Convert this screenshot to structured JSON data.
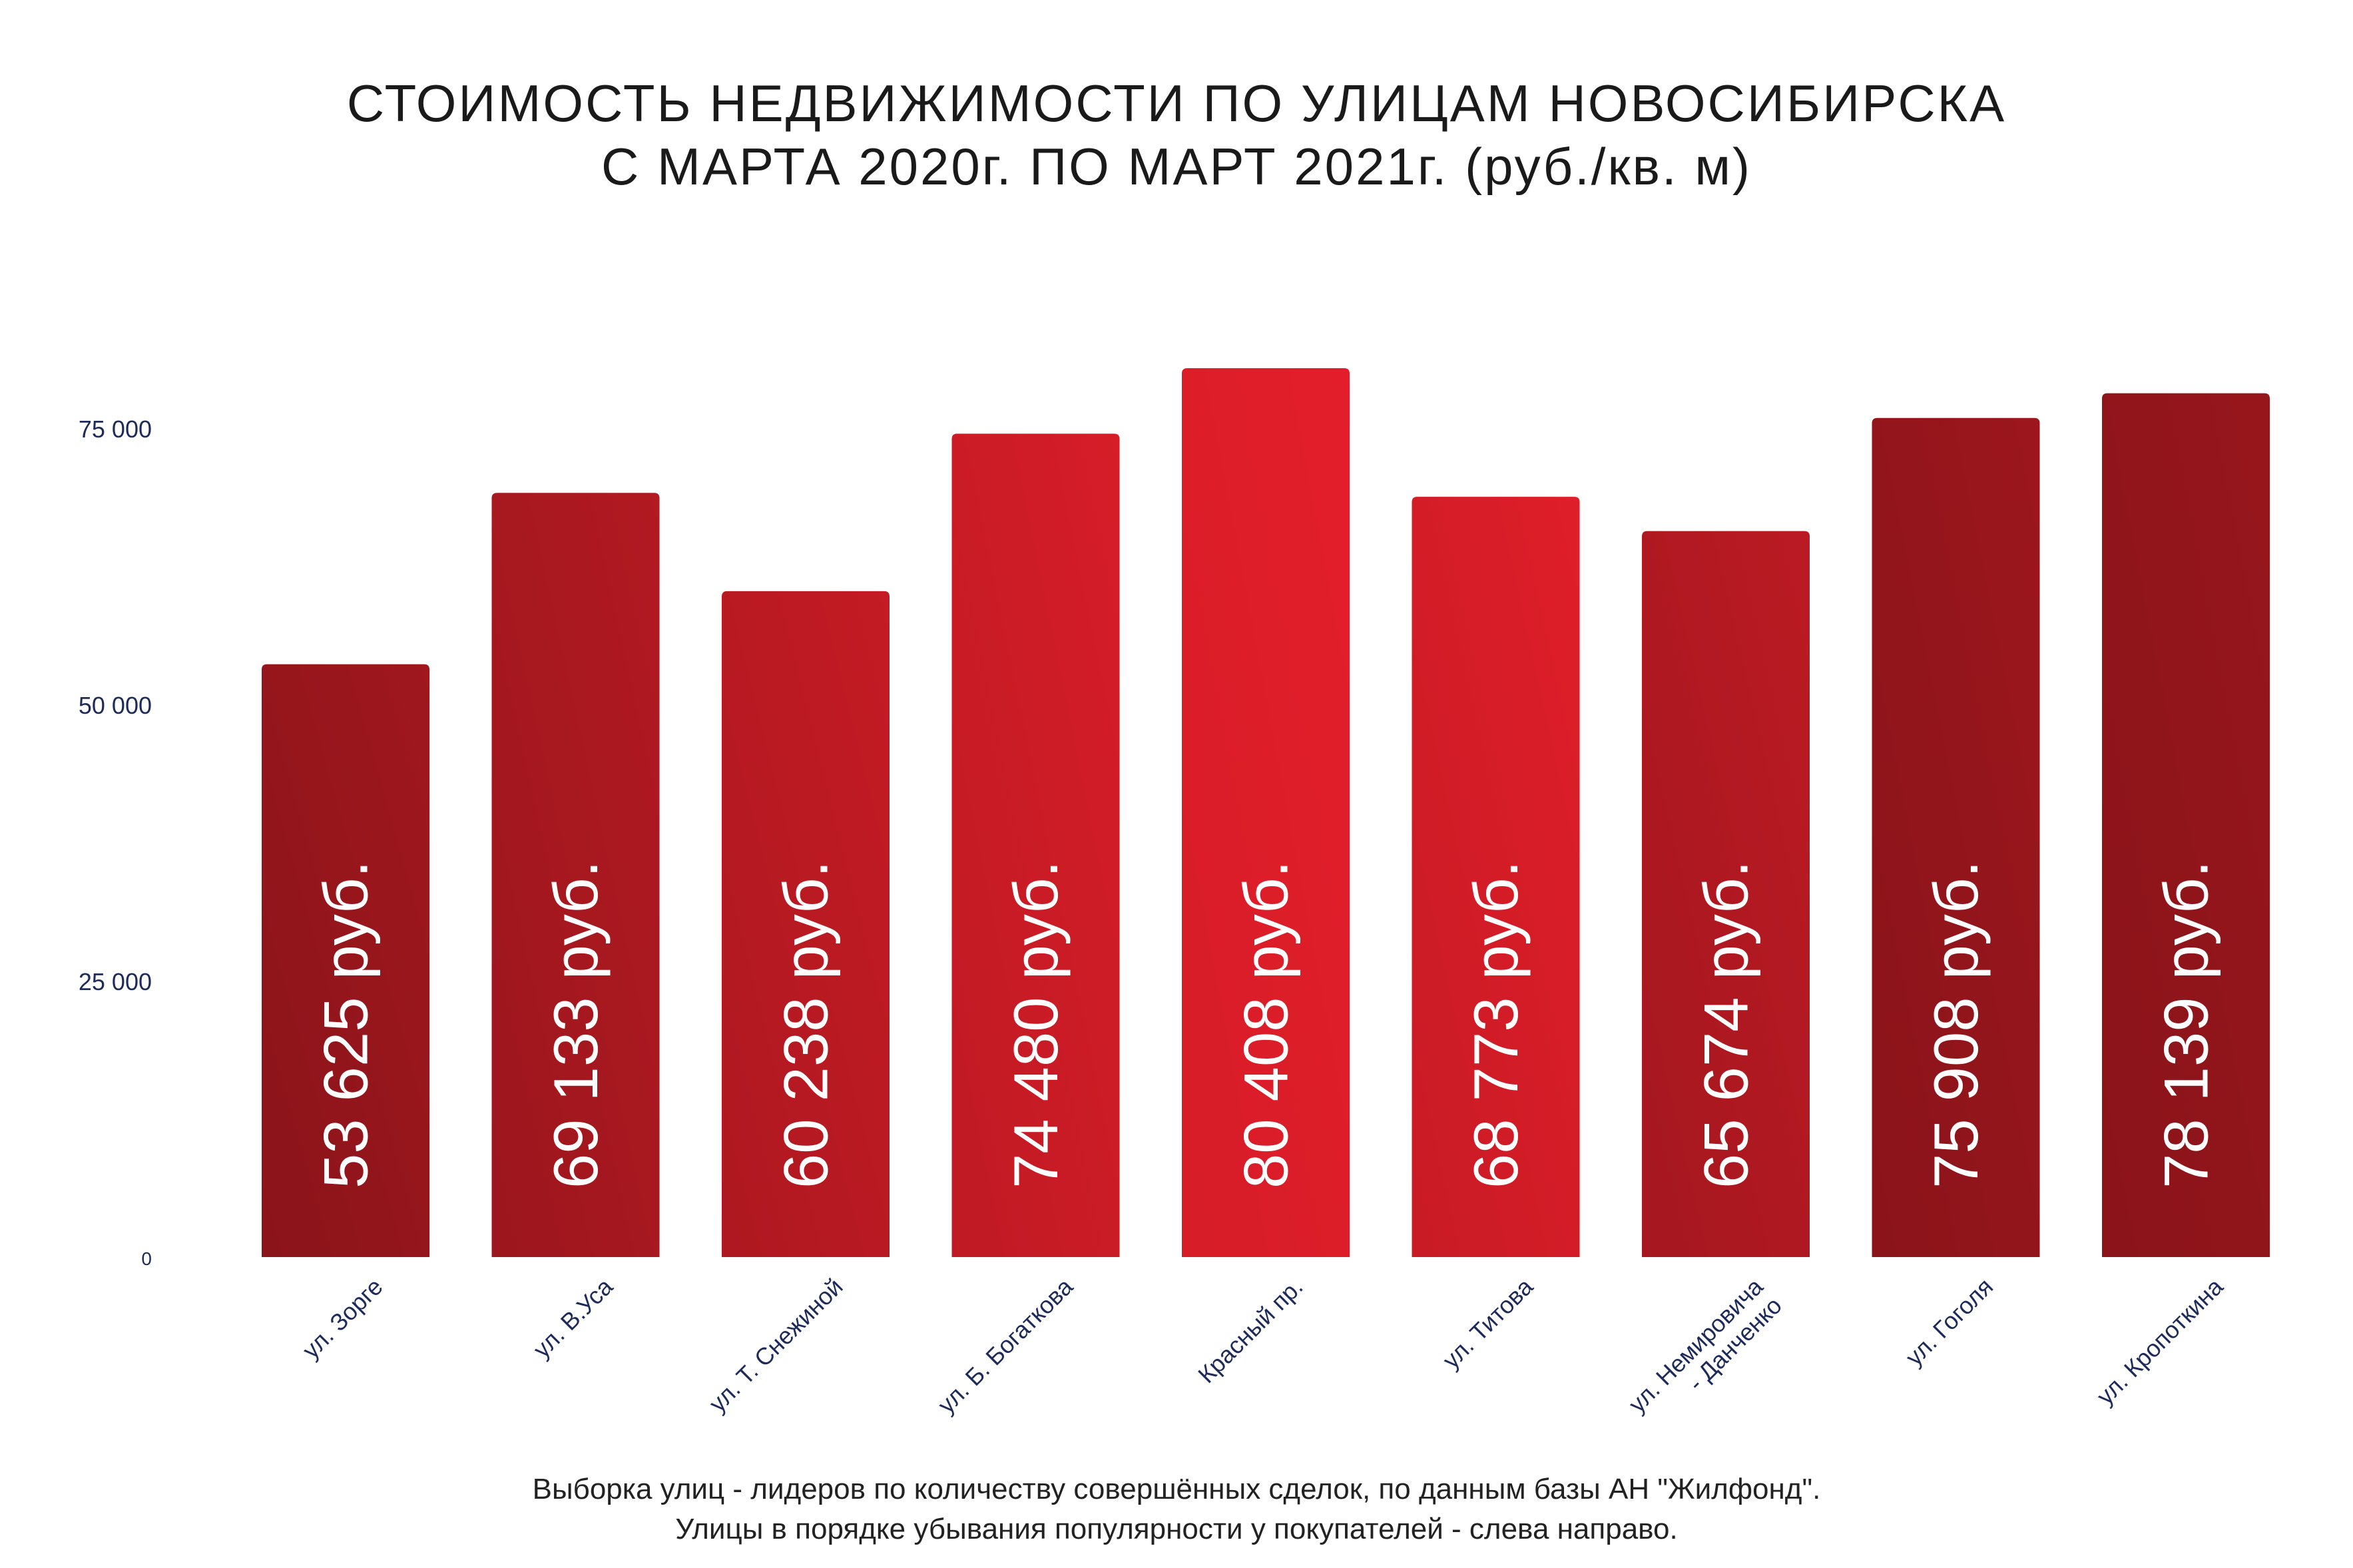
{
  "title": {
    "line1": "СТОИМОСТЬ НЕДВИЖИМОСТИ ПО УЛИЦАМ НОВОСИБИРСКА",
    "line2": "С МАРТА 2020г. ПО МАРТ 2021г.  (руб./кв. м)"
  },
  "footnote": {
    "line1": "Выборка улиц - лидеров по количеству совершённых сделок, по данным базы АН \"Жилфонд\".",
    "line2": "Улицы в порядке убывания популярности у покупателей - слева направо."
  },
  "colors": {
    "axis_text": "#1d2b5a",
    "bar_dark": "#8a141a",
    "bar_mid": "#b51a22",
    "bar_bright": "#e31e2a",
    "bar_label": "#ffffff"
  },
  "chart_data": {
    "type": "bar",
    "categories": [
      "ул. Зорге",
      "ул. В.Уса",
      "ул. Т. Снежиной",
      "ул. Б. Богаткова",
      "Красный пр.",
      "ул. Титова",
      "ул. Немировича - Данченко",
      "ул. Гоголя",
      "ул. Кропоткина"
    ],
    "category_lines": [
      [
        "ул. Зорге"
      ],
      [
        "ул. В.Уса"
      ],
      [
        "ул. Т. Снежиной"
      ],
      [
        "ул. Б. Богаткова"
      ],
      [
        "Красный пр."
      ],
      [
        "ул. Титова"
      ],
      [
        "ул. Немировича",
        "- Данченко"
      ],
      [
        "ул. Гоголя"
      ],
      [
        "ул. Кропоткина"
      ]
    ],
    "values": [
      53625,
      69133,
      60238,
      74480,
      80408,
      68773,
      65674,
      75908,
      78139
    ],
    "data_labels": [
      "53 625 руб.",
      "69 133 руб.",
      "60 238 руб.",
      "74 480 руб.",
      "80 408 руб.",
      "68 773 руб.",
      "65 674 руб.",
      "75 908 руб.",
      "78 139 руб."
    ],
    "yticks": [
      0,
      25000,
      50000,
      75000
    ],
    "ytick_labels": [
      "0",
      "25 000",
      "50 000",
      "75 000"
    ],
    "ylim": [
      0,
      80408
    ],
    "grid": false,
    "legend": "none"
  }
}
